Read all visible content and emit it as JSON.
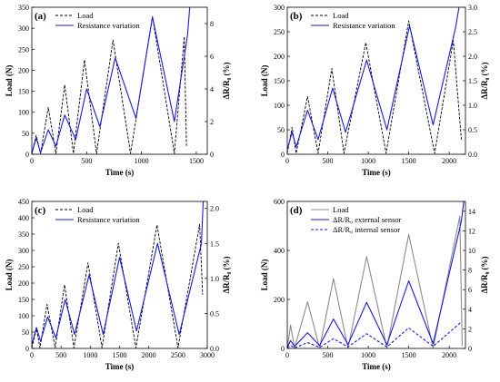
{
  "chart_data": [
    {
      "type": "line",
      "panel_label": "(a)",
      "xlabel": "Time (s)",
      "ylabel_left": "Load (N)",
      "ylabel_right": "ΔR/R₀ (%)",
      "xlim": [
        0,
        1600
      ],
      "ylim_left": [
        0,
        350
      ],
      "ylim_right": [
        0,
        9
      ],
      "xticks": [
        "0",
        "500",
        "1000",
        "1500"
      ],
      "yticks_left": [
        "0",
        "50",
        "100",
        "150",
        "200",
        "250",
        "300",
        "350"
      ],
      "yticks_right": [
        "0",
        "2",
        "4",
        "6",
        "8"
      ],
      "legend_position": "top-left",
      "series": [
        {
          "name": "Load",
          "axis": "left",
          "color": "#000000",
          "dash": "dashed",
          "x": [
            0,
            40,
            80,
            150,
            220,
            300,
            380,
            480,
            590,
            740,
            900,
            1100,
            1300,
            1390,
            1410
          ],
          "y": [
            2,
            45,
            2,
            112,
            2,
            165,
            2,
            225,
            2,
            272,
            2,
            328,
            2,
            280,
            20
          ]
        },
        {
          "name": "Resistance variation",
          "axis": "right",
          "color": "#1a1adb",
          "dash": "solid",
          "x": [
            0,
            40,
            80,
            150,
            220,
            300,
            400,
            500,
            620,
            760,
            950,
            1100,
            1300,
            1420,
            1440
          ],
          "y": [
            0.05,
            1.0,
            0.1,
            1.5,
            0.5,
            2.4,
            0.9,
            4.0,
            1.7,
            5.9,
            2.2,
            8.4,
            2.0,
            7.3,
            9.0
          ]
        }
      ]
    },
    {
      "type": "line",
      "panel_label": "(b)",
      "xlabel": "Time (s)",
      "ylabel_left": "Load (N)",
      "ylabel_right": "ΔR/R₀ (%)",
      "xlim": [
        0,
        2200
      ],
      "ylim_left": [
        0,
        300
      ],
      "ylim_right": [
        0,
        3
      ],
      "xticks": [
        "0",
        "500",
        "1000",
        "1500",
        "2000"
      ],
      "yticks_left": [
        "0",
        "50",
        "100",
        "150",
        "200",
        "250",
        "300"
      ],
      "yticks_right": [
        "0.0",
        "0.5",
        "1.0",
        "1.5",
        "2.0",
        "2.5",
        "3.0"
      ],
      "legend_position": "top-left",
      "series": [
        {
          "name": "Load",
          "axis": "left",
          "color": "#000000",
          "dash": "dashed",
          "x": [
            0,
            60,
            110,
            250,
            380,
            550,
            700,
            970,
            1220,
            1500,
            1820,
            2050,
            2150
          ],
          "y": [
            2,
            55,
            2,
            118,
            2,
            175,
            2,
            228,
            2,
            272,
            2,
            232,
            30
          ]
        },
        {
          "name": "Resistance variation",
          "axis": "right",
          "color": "#1a1adb",
          "dash": "solid",
          "x": [
            0,
            60,
            110,
            250,
            380,
            560,
            720,
            980,
            1230,
            1510,
            1800,
            2080,
            2120
          ],
          "y": [
            0.1,
            0.45,
            0.15,
            0.9,
            0.3,
            1.35,
            0.45,
            1.92,
            0.5,
            2.62,
            0.6,
            2.6,
            3.0
          ]
        }
      ]
    },
    {
      "type": "line",
      "panel_label": "(c)",
      "xlabel": "Time (s)",
      "ylabel_left": "Load (N)",
      "ylabel_right": "ΔR/R₀ (%)",
      "xlim": [
        0,
        3000
      ],
      "ylim_left": [
        0,
        450
      ],
      "ylim_right": [
        0,
        2.1
      ],
      "xticks": [
        "0",
        "500",
        "1000",
        "1500",
        "2000",
        "2500",
        "3000"
      ],
      "yticks_left": [
        "0",
        "50",
        "100",
        "150",
        "200",
        "250",
        "300",
        "350",
        "400",
        "450"
      ],
      "yticks_right": [
        "0.0",
        "0.5",
        "1.0",
        "1.5",
        "2.0"
      ],
      "legend_position": "top-left",
      "series": [
        {
          "name": "Load",
          "axis": "left",
          "color": "#000000",
          "dash": "dashed",
          "x": [
            0,
            80,
            140,
            260,
            400,
            560,
            720,
            960,
            1200,
            1480,
            1780,
            2140,
            2500,
            2870,
            2920
          ],
          "y": [
            2,
            60,
            2,
            135,
            2,
            195,
            2,
            262,
            2,
            322,
            2,
            378,
            2,
            380,
            165
          ]
        },
        {
          "name": "Resistance variation",
          "axis": "right",
          "color": "#1a1adb",
          "dash": "solid",
          "x": [
            0,
            80,
            150,
            270,
            410,
            570,
            730,
            980,
            1220,
            1500,
            1790,
            2150,
            2520,
            2900,
            2930
          ],
          "y": [
            0.05,
            0.3,
            0.1,
            0.45,
            0.15,
            0.7,
            0.2,
            1.05,
            0.2,
            1.3,
            0.25,
            1.5,
            0.2,
            1.5,
            2.1
          ]
        }
      ]
    },
    {
      "type": "line",
      "panel_label": "(d)",
      "xlabel": "Time (s)",
      "ylabel_left": "Load (N)",
      "ylabel_right": "ΔR/R₀ (%)",
      "xlim": [
        0,
        2200
      ],
      "ylim_left": [
        0,
        600
      ],
      "ylim_right": [
        0,
        15
      ],
      "xticks": [
        "0",
        "500",
        "1000",
        "1500",
        "2000"
      ],
      "yticks_left": [
        "0",
        "200",
        "400",
        "600"
      ],
      "yticks_right": [
        "0",
        "2",
        "4",
        "6",
        "8",
        "10",
        "12",
        "14"
      ],
      "legend_position": "top-left",
      "series": [
        {
          "name": "Load",
          "axis": "left",
          "color": "#8c8c8c",
          "dash": "solid",
          "x": [
            0,
            40,
            90,
            250,
            400,
            570,
            750,
            980,
            1230,
            1500,
            1800,
            2130,
            2160
          ],
          "y": [
            2,
            95,
            2,
            190,
            2,
            285,
            2,
            375,
            2,
            465,
            2,
            540,
            10
          ]
        },
        {
          "name": "ΔR/R₀ external sensor",
          "axis": "right",
          "color": "#1a1adb",
          "dash": "solid",
          "x": [
            0,
            40,
            90,
            250,
            400,
            570,
            750,
            980,
            1230,
            1500,
            1800,
            2150,
            2180
          ],
          "y": [
            0.1,
            0.8,
            0.2,
            1.6,
            0.3,
            3.0,
            0.4,
            4.7,
            0.4,
            6.9,
            0.5,
            13.0,
            15.0
          ]
        },
        {
          "name": "ΔR/R₀ internal sensor",
          "axis": "right",
          "color": "#1a1adb",
          "dash": "dashed",
          "x": [
            0,
            40,
            90,
            250,
            400,
            570,
            750,
            980,
            1230,
            1500,
            1800,
            2150
          ],
          "y": [
            0.05,
            0.3,
            0.05,
            0.6,
            0.1,
            1.0,
            0.15,
            1.5,
            0.15,
            2.1,
            0.2,
            2.7
          ]
        }
      ]
    }
  ]
}
